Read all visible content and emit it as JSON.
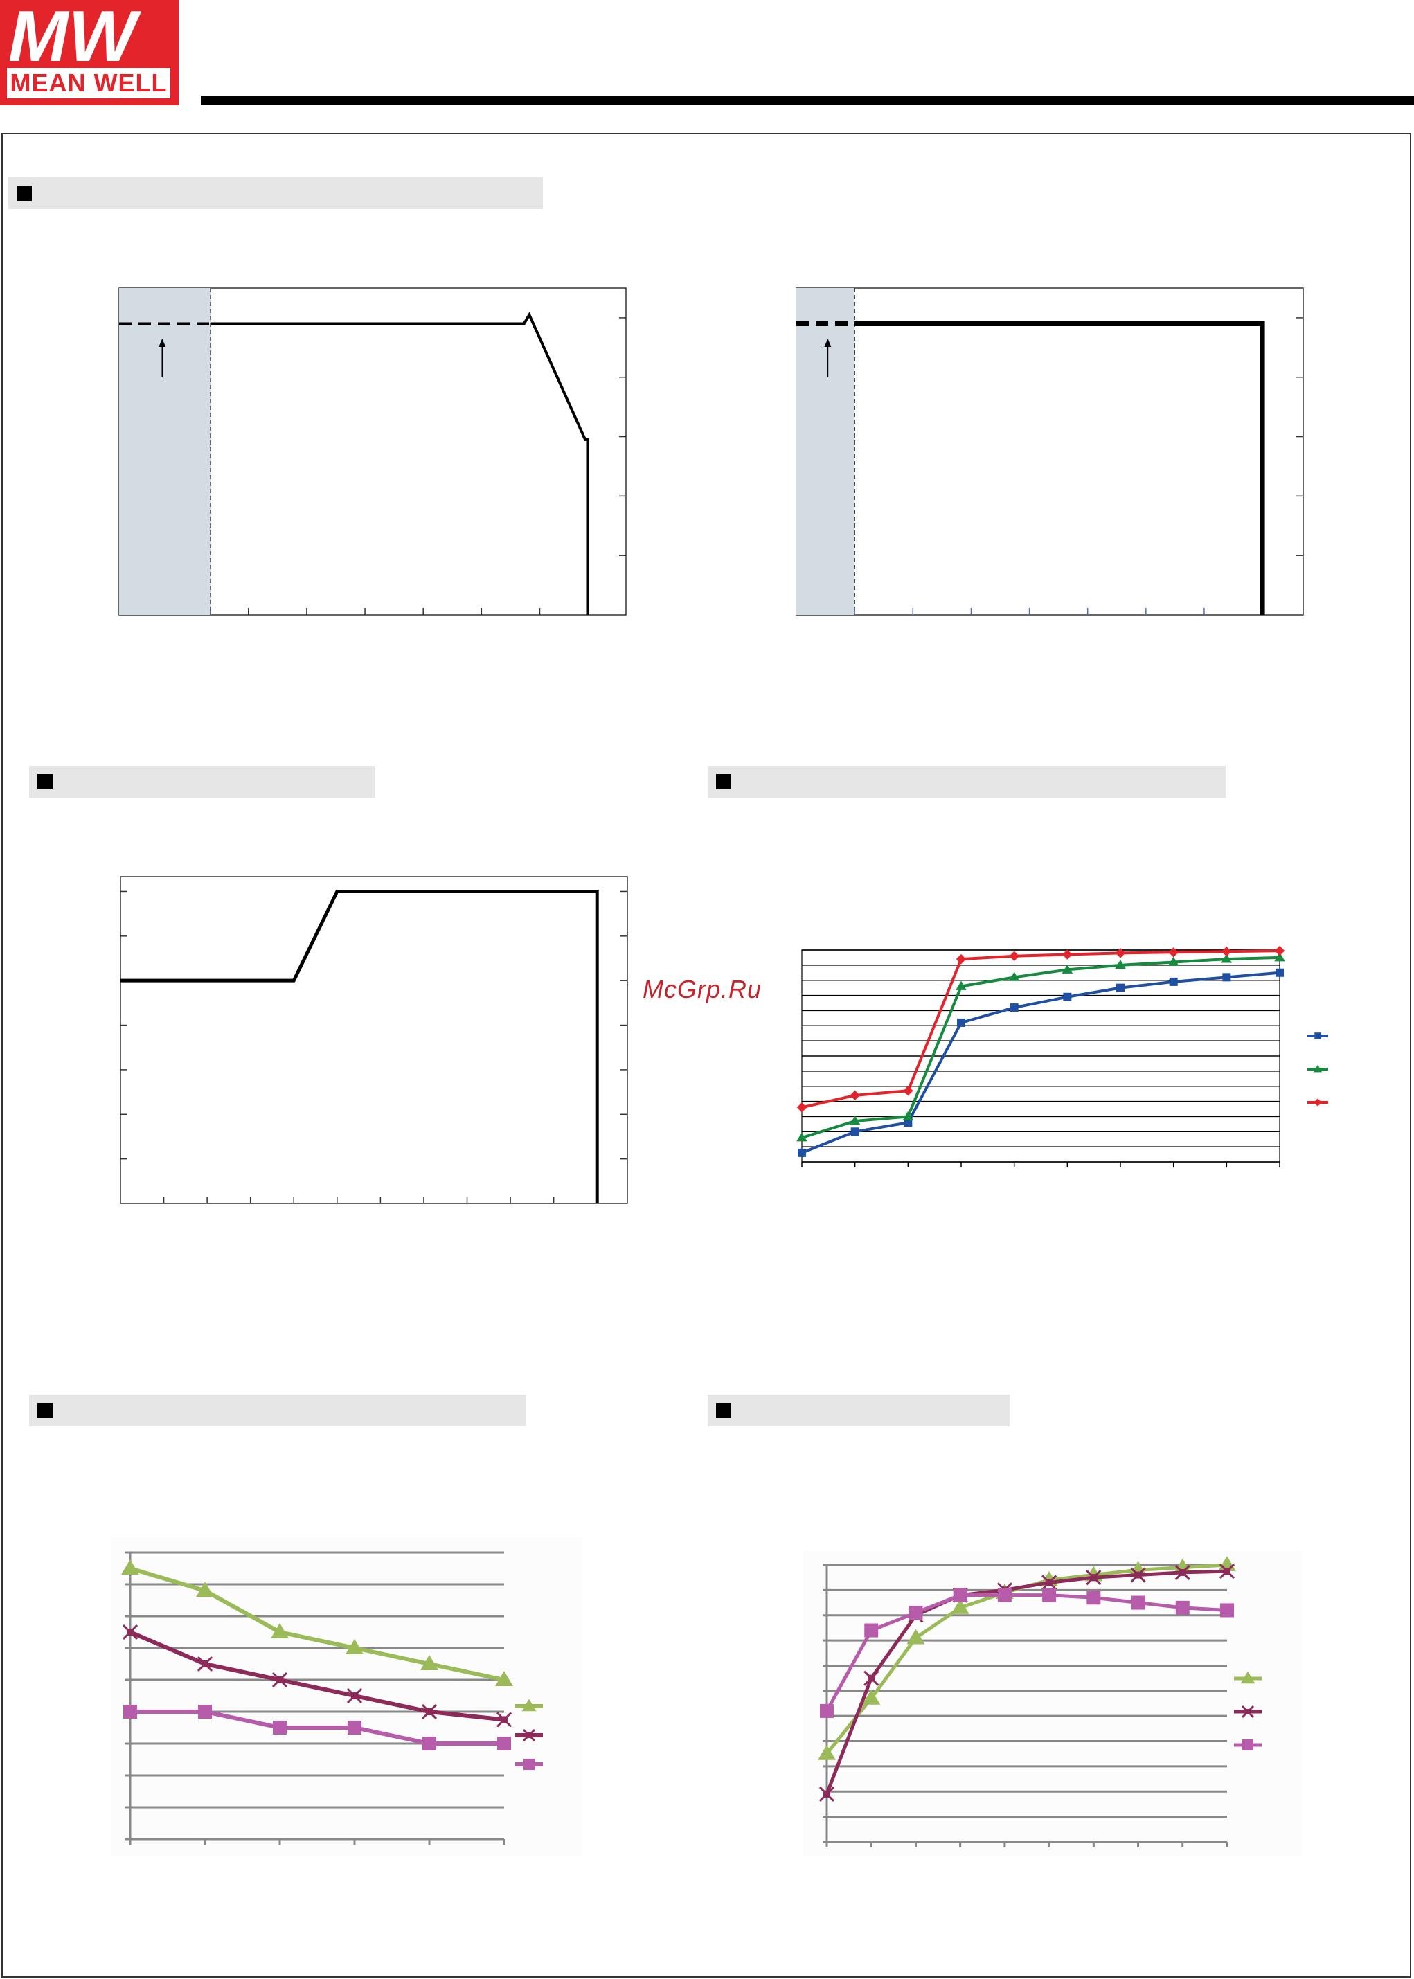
{
  "brand": {
    "logo_mark": "MW",
    "logo_text": "MEAN WELL",
    "color": "#e3242b"
  },
  "watermark": "McGrp.Ru",
  "sections": [
    {
      "id": "s1",
      "title": ""
    },
    {
      "id": "s2",
      "title": ""
    },
    {
      "id": "s3",
      "title": ""
    },
    {
      "id": "s4",
      "title": ""
    },
    {
      "id": "s5",
      "title": ""
    }
  ],
  "chart_data": [
    {
      "id": "derating-1",
      "type": "line",
      "title": "",
      "xlim": [
        0,
        87
      ],
      "ylim": [
        0,
        110
      ],
      "xticks": [
        15.7,
        22.2,
        32.2,
        42.2,
        52.2,
        62.2,
        72.2
      ],
      "yticks": [
        20,
        40,
        60,
        80,
        100
      ],
      "shaded_region_x": [
        0,
        15.7
      ],
      "dashed": [
        [
          0,
          98
        ],
        [
          15.7,
          98
        ]
      ],
      "series": [
        {
          "name": "",
          "x": [
            15.7,
            69.5,
            69.5,
            70.4,
            80.0,
            80.4,
            80.4
          ],
          "y": [
            98,
            98,
            98,
            101,
            59,
            59,
            0
          ]
        }
      ],
      "arrow": {
        "x": 7.4,
        "y_from": 80,
        "y_to": 93
      }
    },
    {
      "id": "derating-2",
      "type": "line",
      "title": "",
      "xlim": [
        0,
        87
      ],
      "ylim": [
        0,
        110
      ],
      "xticks": [
        10,
        20,
        30,
        40,
        50,
        60,
        70
      ],
      "yticks": [
        20,
        40,
        60,
        80,
        100
      ],
      "shaded_region_x": [
        0,
        10
      ],
      "dashed": [
        [
          0,
          98
        ],
        [
          10,
          98
        ]
      ],
      "series": [
        {
          "name": "",
          "x": [
            10,
            80,
            80
          ],
          "y": [
            98,
            98,
            0
          ]
        }
      ],
      "arrow": {
        "x": 5.4,
        "y_from": 80,
        "y_to": 93
      }
    },
    {
      "id": "output-vs-input",
      "type": "line",
      "title": "",
      "xlim": [
        0,
        11.7
      ],
      "ylim": [
        0,
        110
      ],
      "xticks": [
        1,
        2,
        3,
        4,
        5,
        6,
        7,
        8,
        9,
        10,
        11
      ],
      "yticks": [
        15,
        30,
        45,
        60,
        75,
        90,
        105
      ],
      "series": [
        {
          "name": "",
          "x": [
            0,
            4,
            5,
            11,
            11
          ],
          "y": [
            75,
            75,
            105,
            105,
            0
          ]
        }
      ]
    },
    {
      "id": "three-series-step",
      "type": "line",
      "title": "",
      "xlim": [
        0,
        9
      ],
      "ylim": [
        0,
        14
      ],
      "xticks": [
        1,
        2,
        3,
        4,
        5,
        6,
        7,
        8
      ],
      "yticks": [
        1,
        2,
        3,
        4,
        5,
        6,
        7,
        8,
        9,
        10,
        11,
        12,
        13
      ],
      "x": [
        0,
        1,
        2,
        3,
        4,
        5,
        6,
        7,
        8,
        9
      ],
      "series": [
        {
          "name": "",
          "color": "#1f4fa0",
          "marker": "square",
          "values": [
            0.6,
            2.0,
            2.6,
            9.2,
            10.2,
            10.9,
            11.5,
            11.9,
            12.2,
            12.5
          ]
        },
        {
          "name": "",
          "color": "#168a3e",
          "marker": "triangle",
          "values": [
            1.6,
            2.7,
            3.0,
            11.6,
            12.2,
            12.7,
            13.0,
            13.2,
            13.4,
            13.5
          ]
        },
        {
          "name": "",
          "color": "#e3242b",
          "marker": "diamond",
          "values": [
            3.6,
            4.4,
            4.7,
            13.4,
            13.6,
            13.7,
            13.8,
            13.85,
            13.9,
            13.95
          ]
        }
      ]
    },
    {
      "id": "descending-three-series",
      "type": "line",
      "title": "",
      "xlim": [
        0,
        5
      ],
      "ylim": [
        0,
        9
      ],
      "x": [
        0,
        1,
        2,
        3,
        4,
        5
      ],
      "series": [
        {
          "name": "",
          "color": "#9bbb59",
          "marker": "triangle",
          "values": [
            8.5,
            7.8,
            6.5,
            6.0,
            5.5,
            5.0
          ]
        },
        {
          "name": "",
          "color": "#8e2a5a",
          "marker": "star",
          "values": [
            6.5,
            5.5,
            5.0,
            4.5,
            4.0,
            3.75
          ]
        },
        {
          "name": "",
          "color": "#b65cab",
          "marker": "square",
          "values": [
            4.0,
            4.0,
            3.5,
            3.5,
            3.0,
            3.0
          ]
        }
      ]
    },
    {
      "id": "rising-three-series",
      "type": "line",
      "title": "",
      "xlim": [
        0,
        9
      ],
      "ylim": [
        0,
        11
      ],
      "x": [
        0,
        1,
        2,
        3,
        4,
        5,
        6,
        7,
        8,
        9
      ],
      "series": [
        {
          "name": "",
          "color": "#9bbb59",
          "marker": "triangle",
          "values": [
            3.5,
            5.7,
            8.1,
            9.3,
            9.9,
            10.4,
            10.6,
            10.8,
            10.9,
            11.0
          ]
        },
        {
          "name": "",
          "color": "#8e2a5a",
          "marker": "star",
          "values": [
            1.9,
            6.5,
            9.0,
            9.8,
            10.0,
            10.3,
            10.5,
            10.6,
            10.7,
            10.75
          ]
        },
        {
          "name": "",
          "color": "#b65cab",
          "marker": "square",
          "values": [
            5.2,
            8.4,
            9.1,
            9.8,
            9.8,
            9.8,
            9.7,
            9.5,
            9.3,
            9.2
          ]
        }
      ]
    }
  ]
}
